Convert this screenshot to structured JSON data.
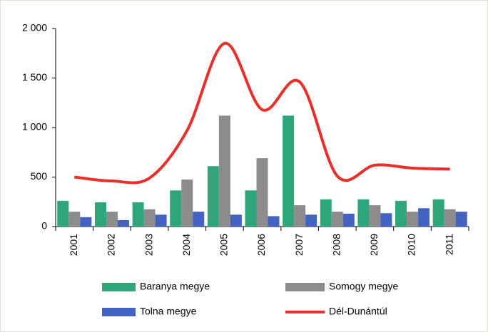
{
  "chart_data": {
    "type": "bar",
    "categories": [
      "2001",
      "2002",
      "2003",
      "2004",
      "2005",
      "2006",
      "2007",
      "2008",
      "2009",
      "2010",
      "2011"
    ],
    "series": [
      {
        "name": "Baranya megye",
        "color": "#2fa67a",
        "values": [
          260,
          245,
          245,
          365,
          610,
          365,
          1120,
          275,
          275,
          260,
          275
        ]
      },
      {
        "name": "Somogy megye",
        "color": "#8c8c8c",
        "values": [
          150,
          150,
          175,
          475,
          1120,
          690,
          215,
          150,
          215,
          150,
          175
        ]
      },
      {
        "name": "Tolna megye",
        "color": "#4263c2",
        "values": [
          95,
          65,
          120,
          150,
          120,
          105,
          120,
          130,
          135,
          185,
          150
        ]
      },
      {
        "name": "Dél-Dunántúl",
        "type": "line",
        "color": "#e8302a",
        "values": [
          500,
          460,
          490,
          970,
          1850,
          1180,
          1460,
          510,
          620,
          590,
          580
        ]
      }
    ],
    "ylim": [
      0,
      2000
    ],
    "yticks": [
      0,
      500,
      {
        "value": 1000,
        "label": "1 000"
      },
      {
        "value": 1500,
        "label": "1 500"
      },
      {
        "value": 2000,
        "label": "2 000"
      }
    ]
  }
}
